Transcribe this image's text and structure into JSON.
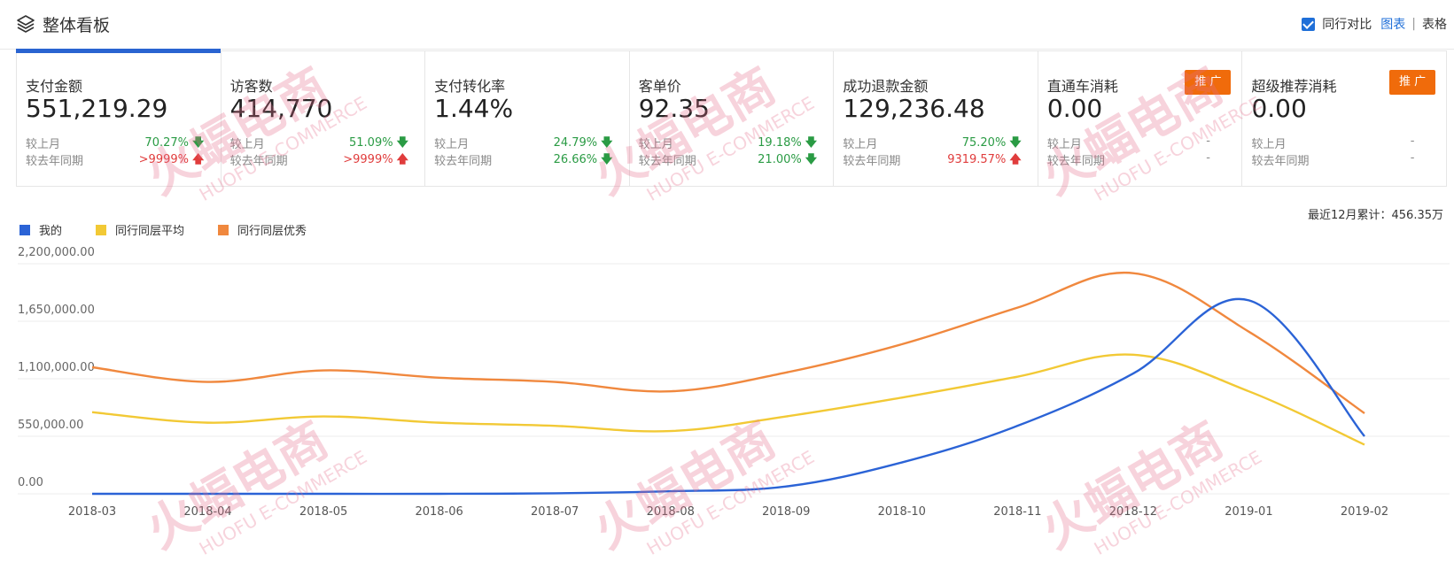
{
  "header": {
    "title": "整体看板",
    "compare_label": "同行对比",
    "view_chart": "图表",
    "view_table": "表格",
    "separator": "|"
  },
  "metrics": [
    {
      "label": "支付金额",
      "value": "551,219.29",
      "mom_label": "较上月",
      "mom": "70.27%",
      "mom_dir": "down",
      "yoy_label": "较去年同期",
      "yoy": ">9999%",
      "yoy_dir": "up"
    },
    {
      "label": "访客数",
      "value": "414,770",
      "mom_label": "较上月",
      "mom": "51.09%",
      "mom_dir": "down",
      "yoy_label": "较去年同期",
      "yoy": ">9999%",
      "yoy_dir": "up"
    },
    {
      "label": "支付转化率",
      "value": "1.44%",
      "mom_label": "较上月",
      "mom": "24.79%",
      "mom_dir": "down",
      "yoy_label": "较去年同期",
      "yoy": "26.66%",
      "yoy_dir": "down"
    },
    {
      "label": "客单价",
      "value": "92.35",
      "mom_label": "较上月",
      "mom": "19.18%",
      "mom_dir": "down",
      "yoy_label": "较去年同期",
      "yoy": "21.00%",
      "yoy_dir": "down"
    },
    {
      "label": "成功退款金额",
      "value": "129,236.48",
      "mom_label": "较上月",
      "mom": "75.20%",
      "mom_dir": "down",
      "yoy_label": "较去年同期",
      "yoy": "9319.57%",
      "yoy_dir": "up"
    },
    {
      "label": "直通车消耗",
      "value": "0.00",
      "mom_label": "较上月",
      "mom": "-",
      "mom_dir": "none",
      "yoy_label": "较去年同期",
      "yoy": "-",
      "yoy_dir": "none",
      "promo": "推 广"
    },
    {
      "label": "超级推荐消耗",
      "value": "0.00",
      "mom_label": "较上月",
      "mom": "-",
      "mom_dir": "none",
      "yoy_label": "较去年同期",
      "yoy": "-",
      "yoy_dir": "none",
      "promo": "推 广"
    }
  ],
  "cumulative": "最近12月累计：456.35万",
  "watermark": {
    "brand": "火蝠电商",
    "sub": "HUOFU E-COMMERCE"
  },
  "chart_data": {
    "type": "line",
    "x": [
      "2018-03",
      "2018-04",
      "2018-05",
      "2018-06",
      "2018-07",
      "2018-08",
      "2018-09",
      "2018-10",
      "2018-11",
      "2018-12",
      "2019-01",
      "2019-02"
    ],
    "ylim": [
      0,
      2200000
    ],
    "yticks": [
      "0.00",
      "550,000.00",
      "1,100,000.00",
      "1,650,000.00",
      "2,200,000.00"
    ],
    "series": [
      {
        "name": "我的",
        "color": "#2b63d6",
        "values": [
          0,
          0,
          0,
          0,
          5000,
          25000,
          70000,
          300000,
          650000,
          1150000,
          1850000,
          550000
        ]
      },
      {
        "name": "同行同层平均",
        "color": "#f2c935",
        "values": [
          780000,
          680000,
          740000,
          680000,
          650000,
          600000,
          740000,
          920000,
          1120000,
          1330000,
          980000,
          470000
        ]
      },
      {
        "name": "同行同层优秀",
        "color": "#f0883e",
        "values": [
          1210000,
          1070000,
          1180000,
          1110000,
          1070000,
          980000,
          1160000,
          1430000,
          1780000,
          2110000,
          1550000,
          770000
        ]
      }
    ]
  }
}
